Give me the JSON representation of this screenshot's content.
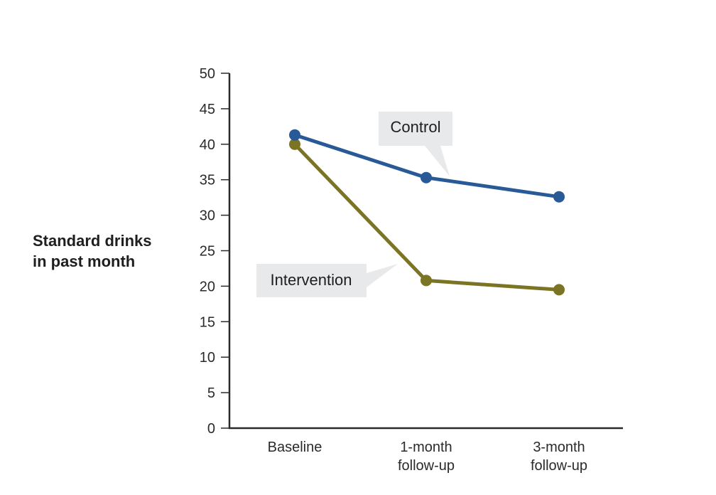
{
  "chart_data": {
    "type": "line",
    "title": "",
    "xlabel": "",
    "ylabel": [
      "Standard drinks",
      "in past month"
    ],
    "categories": [
      [
        "Baseline"
      ],
      [
        "1-month",
        "follow-up"
      ],
      [
        "3-month",
        "follow-up"
      ]
    ],
    "ylim": [
      0,
      50
    ],
    "yticks": [
      0,
      5,
      10,
      15,
      20,
      25,
      30,
      35,
      40,
      45,
      50
    ],
    "grid": false,
    "series": [
      {
        "name": "Control",
        "color": "#275a96",
        "values": [
          41.3,
          35.3,
          32.6
        ]
      },
      {
        "name": "Intervention",
        "color": "#7a7424",
        "values": [
          40.0,
          20.8,
          19.5
        ]
      }
    ],
    "annotations": [
      {
        "text": "Control",
        "series": "Control",
        "callout_bg": "#e8e9ea"
      },
      {
        "text": "Intervention",
        "series": "Intervention",
        "callout_bg": "#e8e9ea"
      }
    ]
  }
}
